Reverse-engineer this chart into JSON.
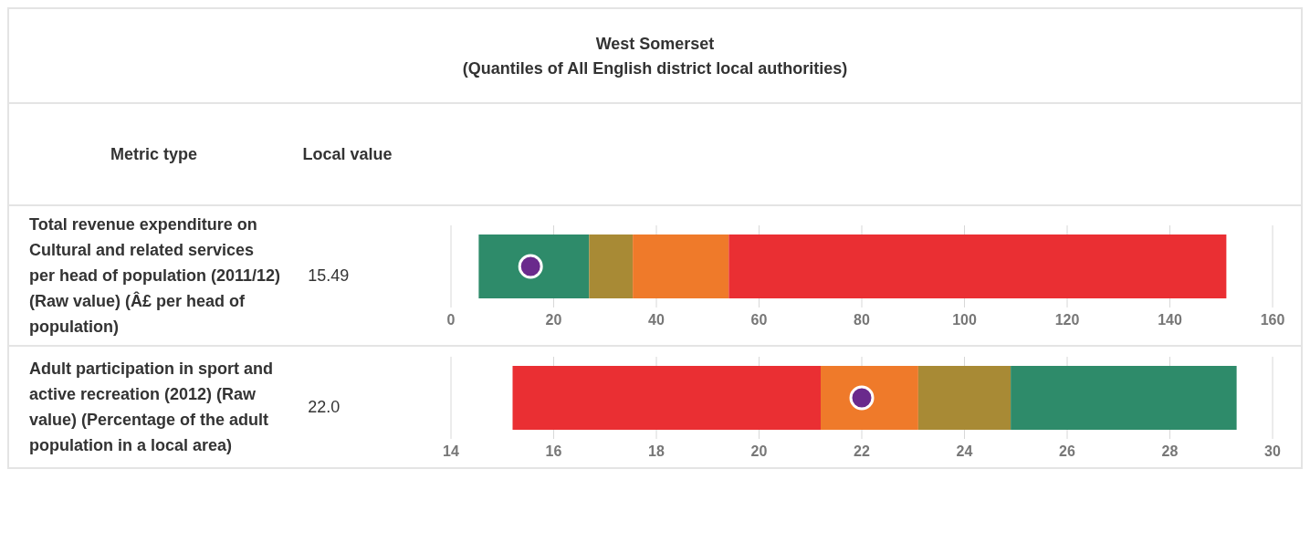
{
  "chart_data": [
    {
      "type": "other",
      "title": "West Somerset",
      "subtitle": "(Quantiles of All English district local authorities)",
      "annotations": [
        "Metric type",
        "Local value"
      ]
    },
    {
      "type": "bar",
      "orientation": "horizontal",
      "ylabel": "Total revenue expenditure on Cultural and related services per head of population (2011/12) (Raw value) (Â£ per head of population)",
      "annotations": [
        "15.49"
      ],
      "categories": [
        null
      ],
      "xlim": [
        0,
        160
      ],
      "xticks": [
        0,
        20,
        40,
        60,
        80,
        100,
        120,
        140,
        160
      ],
      "grid": "x",
      "series": [
        {
          "color": "#2e8b6a",
          "base": [
            5.4
          ],
          "values": [
            21.5
          ]
        },
        {
          "color": "#a88a35",
          "base": [
            26.9
          ],
          "values": [
            8.5
          ]
        },
        {
          "color": "#ef7a2a",
          "base": [
            35.4
          ],
          "values": [
            18.7
          ]
        },
        {
          "color": "#ea2f33",
          "base": [
            54.1
          ],
          "values": [
            96.9
          ]
        },
        {
          "type": "scatter",
          "color": "#6a2a8c",
          "marker": "circle",
          "values": [
            15.5
          ]
        }
      ]
    },
    {
      "type": "bar",
      "orientation": "horizontal",
      "ylabel": "Adult participation in sport and active recreation (2012) (Raw value) (Percentage of the adult population in a local area)",
      "annotations": [
        "22.0"
      ],
      "categories": [
        null
      ],
      "xlim": [
        14,
        30
      ],
      "xticks": [
        14,
        16,
        18,
        20,
        22,
        24,
        26,
        28,
        30
      ],
      "grid": "x",
      "series": [
        {
          "color": "#ea2f33",
          "base": [
            15.2
          ],
          "values": [
            6.0
          ]
        },
        {
          "color": "#ef7a2a",
          "base": [
            21.2
          ],
          "values": [
            1.9
          ]
        },
        {
          "color": "#a88a35",
          "base": [
            23.1
          ],
          "values": [
            1.8
          ]
        },
        {
          "color": "#2e8b6a",
          "base": [
            24.9
          ],
          "values": [
            4.4
          ]
        },
        {
          "type": "scatter",
          "color": "#6a2a8c",
          "marker": "circle",
          "values": [
            22.0
          ]
        }
      ]
    }
  ]
}
